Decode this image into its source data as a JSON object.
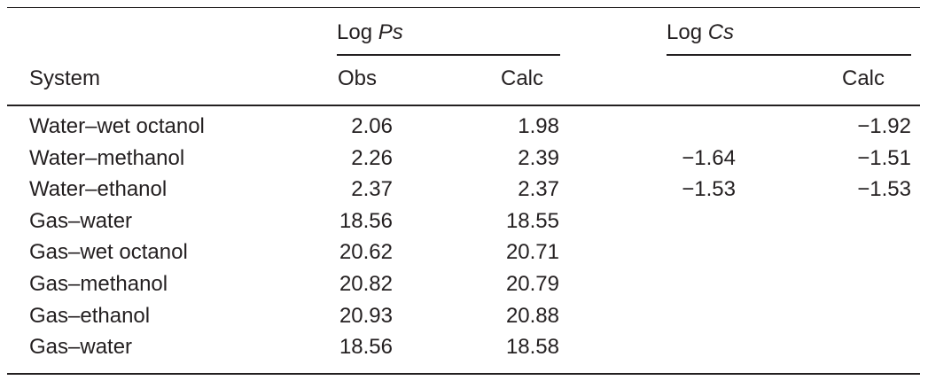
{
  "table": {
    "groups": [
      {
        "text": "Log",
        "italic": "Ps"
      },
      {
        "text": "Log",
        "italic": "Cs"
      }
    ],
    "columns": [
      "System",
      "Obs",
      "Calc",
      null,
      "Calc"
    ],
    "rows": [
      [
        "Water–wet octanol",
        "2.06",
        "1.98",
        null,
        "−1.92"
      ],
      [
        "Water–methanol",
        "2.26",
        "2.39",
        "−1.64",
        "−1.51"
      ],
      [
        "Water–ethanol",
        "2.37",
        "2.37",
        "−1.53",
        "−1.53"
      ],
      [
        "Gas–water",
        "18.56",
        "18.55",
        null,
        null
      ],
      [
        "Gas–wet octanol",
        "20.62",
        "20.71",
        null,
        null
      ],
      [
        "Gas–methanol",
        "20.82",
        "20.79",
        null,
        null
      ],
      [
        "Gas–ethanol",
        "20.93",
        "20.88",
        null,
        null
      ],
      [
        "Gas–water",
        "18.56",
        "18.58",
        null,
        null
      ]
    ]
  }
}
